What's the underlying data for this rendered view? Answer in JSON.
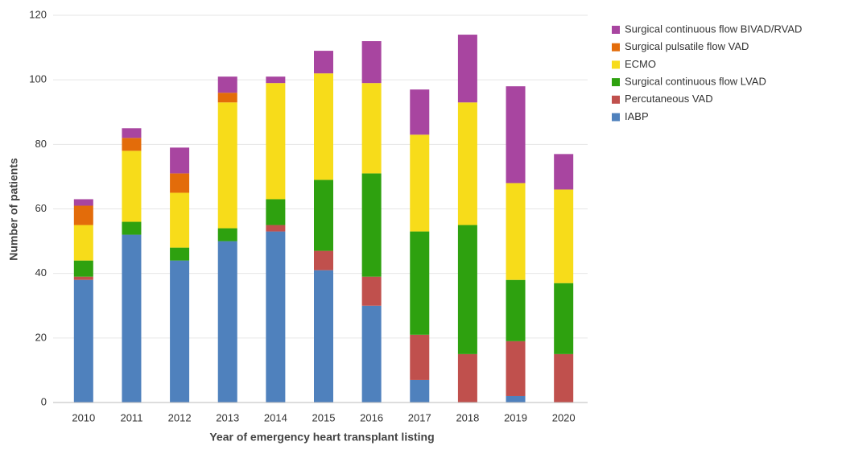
{
  "chart_data": {
    "type": "stacked-bar",
    "x_label": "Year of emergency heart transplant listing",
    "y_label": "Number of patients",
    "categories": [
      "2010",
      "2011",
      "2012",
      "2013",
      "2014",
      "2015",
      "2016",
      "2017",
      "2018",
      "2019",
      "2020"
    ],
    "series": [
      {
        "name": "IABP",
        "color": "#4f81bd",
        "values": [
          38,
          52,
          44,
          50,
          53,
          41,
          30,
          7,
          0,
          2,
          0
        ]
      },
      {
        "name": "Percutaneous VAD",
        "color": "#c0504d",
        "values": [
          1,
          0,
          0,
          0,
          2,
          6,
          9,
          14,
          15,
          17,
          15
        ]
      },
      {
        "name": "Surgical continuous flow LVAD",
        "color": "#2ea10f",
        "values": [
          5,
          4,
          4,
          4,
          8,
          22,
          32,
          32,
          40,
          19,
          22
        ]
      },
      {
        "name": "ECMO",
        "color": "#f7dc1a",
        "values": [
          11,
          22,
          17,
          39,
          36,
          33,
          28,
          30,
          38,
          30,
          29
        ]
      },
      {
        "name": "Surgical pulsatile flow VAD",
        "color": "#e36c0a",
        "values": [
          6,
          4,
          6,
          3,
          0,
          0,
          0,
          0,
          0,
          0,
          0
        ]
      },
      {
        "name": "Surgical continuous flow BIVAD/RVAD",
        "color": "#a845a0",
        "values": [
          2,
          3,
          8,
          5,
          2,
          7,
          13,
          14,
          21,
          30,
          11
        ]
      }
    ],
    "ylim": [
      0,
      120
    ],
    "yticks": [
      0,
      20,
      40,
      60,
      80,
      100,
      120
    ],
    "grid": true,
    "legend": "right"
  }
}
